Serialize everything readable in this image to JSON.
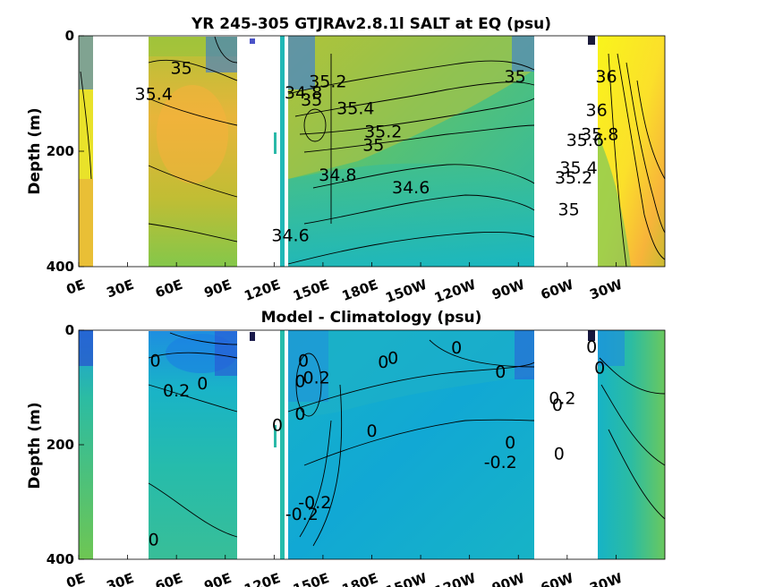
{
  "chart_data": [
    {
      "type": "heatmap",
      "title": "YR 245-305 GTJRAv2.8.1l SALT at EQ (psu)",
      "ylabel": "Depth (m)",
      "xlabel": "",
      "yticks": [
        "0",
        "200",
        "400"
      ],
      "ylim": [
        0,
        400
      ],
      "xticks": [
        "0E",
        "30E",
        "60E",
        "90E",
        "120E",
        "150E",
        "180E",
        "150W",
        "120W",
        "90W",
        "60W",
        "30W"
      ],
      "contour_labels": [
        {
          "text": "35",
          "lon": 63,
          "depth": 55
        },
        {
          "text": "35.4",
          "lon": 46,
          "depth": 100
        },
        {
          "text": "34.8",
          "lon": 138,
          "depth": 98
        },
        {
          "text": "35",
          "lon": 143,
          "depth": 110
        },
        {
          "text": "35.2",
          "lon": 153,
          "depth": 78
        },
        {
          "text": "35.4",
          "lon": 170,
          "depth": 125
        },
        {
          "text": "35.2",
          "lon": 187,
          "depth": 165
        },
        {
          "text": "35",
          "lon": 181,
          "depth": 188
        },
        {
          "text": "34.8",
          "lon": 159,
          "depth": 240
        },
        {
          "text": "34.6",
          "lon": 204,
          "depth": 262
        },
        {
          "text": "34.6",
          "lon": 130,
          "depth": 345
        },
        {
          "text": "35",
          "lon": 268,
          "depth": 70
        },
        {
          "text": "36",
          "lon": 324,
          "depth": 70
        },
        {
          "text": "36",
          "lon": 318,
          "depth": 128
        },
        {
          "text": "35.8",
          "lon": 320,
          "depth": 170
        },
        {
          "text": "35.6",
          "lon": 311,
          "depth": 180
        },
        {
          "text": "35.4",
          "lon": 307,
          "depth": 228
        },
        {
          "text": "35.2",
          "lon": 304,
          "depth": 245
        },
        {
          "text": "35",
          "lon": 301,
          "depth": 300
        }
      ],
      "colormap": "parula"
    },
    {
      "type": "heatmap",
      "title": "Model - Climatology (psu)",
      "ylabel": "Depth (m)",
      "xlabel": "",
      "yticks": [
        "0",
        "200",
        "400"
      ],
      "ylim": [
        0,
        400
      ],
      "xticks": [
        "0E",
        "30E",
        "60E",
        "90E",
        "120E",
        "150E",
        "180E",
        "150W",
        "120W",
        "90W",
        "60W",
        "30W"
      ],
      "contour_labels": [
        {
          "text": "0",
          "lon": 47,
          "depth": 52
        },
        {
          "text": "0.2",
          "lon": 60,
          "depth": 105
        },
        {
          "text": "0",
          "lon": 76,
          "depth": 92
        },
        {
          "text": "0",
          "lon": 138,
          "depth": 52
        },
        {
          "text": "0.2",
          "lon": 146,
          "depth": 82
        },
        {
          "text": "0",
          "lon": 136,
          "depth": 88
        },
        {
          "text": "0",
          "lon": 136,
          "depth": 145
        },
        {
          "text": "0",
          "lon": 122,
          "depth": 165
        },
        {
          "text": "0",
          "lon": 187,
          "depth": 55
        },
        {
          "text": "0",
          "lon": 193,
          "depth": 48
        },
        {
          "text": "0",
          "lon": 232,
          "depth": 30
        },
        {
          "text": "0",
          "lon": 259,
          "depth": 72
        },
        {
          "text": "0",
          "lon": 180,
          "depth": 175
        },
        {
          "text": "-0.2",
          "lon": 259,
          "depth": 230
        },
        {
          "text": "0",
          "lon": 265,
          "depth": 195
        },
        {
          "text": "-0.2",
          "lon": 145,
          "depth": 300
        },
        {
          "text": "-0.2",
          "lon": 137,
          "depth": 320
        },
        {
          "text": "0",
          "lon": 315,
          "depth": 28
        },
        {
          "text": "0",
          "lon": 320,
          "depth": 65
        },
        {
          "text": "0.2",
          "lon": 297,
          "depth": 118
        },
        {
          "text": "0",
          "lon": 294,
          "depth": 130
        },
        {
          "text": "0",
          "lon": 295,
          "depth": 215
        },
        {
          "text": "0",
          "lon": 46,
          "depth": 365
        }
      ],
      "colormap": "parula"
    }
  ]
}
